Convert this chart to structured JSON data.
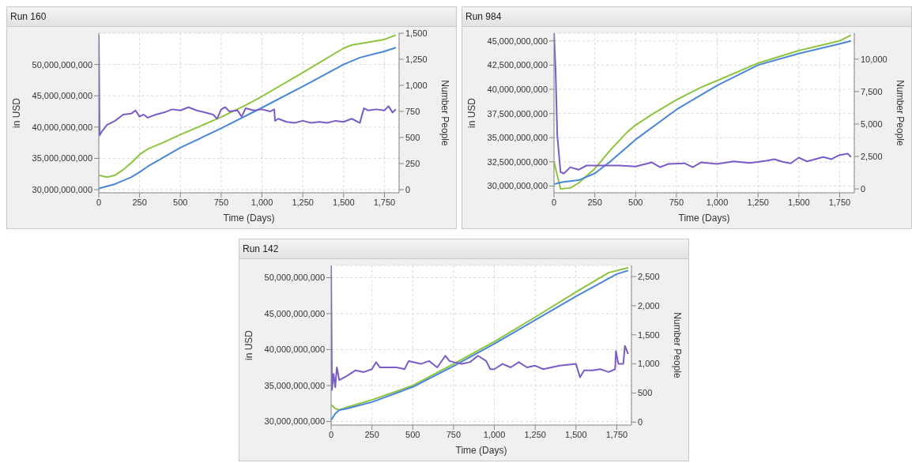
{
  "chart_data": [
    {
      "type": "line",
      "title": "Run 160",
      "xlabel": "Time (Days)",
      "ylabel": "in USD",
      "y2label": "Number People",
      "xlim": [
        0,
        1840
      ],
      "xticks": [
        0,
        250,
        500,
        750,
        {
          "value": 1000,
          "label": "1,000"
        },
        {
          "value": 1250,
          "label": "1,250"
        },
        {
          "value": 1500,
          "label": "1,500"
        },
        {
          "value": 1750,
          "label": "1,750"
        }
      ],
      "ylim": [
        29500000000,
        55000000000
      ],
      "yticks": [
        {
          "value": 30000000000,
          "label": "30,000,000,000"
        },
        {
          "value": 35000000000,
          "label": "35,000,000,000"
        },
        {
          "value": 40000000000,
          "label": "40,000,000,000"
        },
        {
          "value": 45000000000,
          "label": "45,000,000,000"
        },
        {
          "value": 50000000000,
          "label": "50,000,000,000"
        }
      ],
      "y2lim": [
        -30,
        1500
      ],
      "y2ticks": [
        0,
        250,
        500,
        750,
        {
          "value": 1000,
          "label": "1,000"
        },
        {
          "value": 1250,
          "label": "1,250"
        },
        {
          "value": 1500,
          "label": "1,500"
        }
      ],
      "grid": true,
      "legend": false,
      "marker": "none",
      "line_style": "solid",
      "series": [
        {
          "color": "#8cc43c",
          "x": [
            0,
            50,
            100,
            150,
            200,
            250,
            300,
            400,
            500,
            600,
            750,
            900,
            1000,
            1250,
            1500,
            1550,
            1750,
            1820
          ],
          "values": [
            32300000000,
            32000000000,
            32300000000,
            33200000000,
            34300000000,
            35600000000,
            36500000000,
            37600000000,
            38800000000,
            39900000000,
            41600000000,
            43500000000,
            44900000000,
            48700000000,
            52600000000,
            53100000000,
            54000000000,
            54700000000
          ]
        },
        {
          "color": "#4a86d8",
          "x": [
            0,
            100,
            200,
            250,
            300,
            500,
            750,
            1000,
            1250,
            1500,
            1600,
            1750,
            1820
          ],
          "values": [
            30200000000,
            30900000000,
            32000000000,
            32800000000,
            33700000000,
            36700000000,
            39800000000,
            43100000000,
            46500000000,
            50000000000,
            51100000000,
            52100000000,
            52700000000
          ]
        },
        {
          "color": "#7a5cc8",
          "axis": "y2",
          "x": [
            0,
            5,
            20,
            50,
            100,
            150,
            200,
            225,
            250,
            275,
            300,
            350,
            400,
            450,
            500,
            550,
            600,
            650,
            700,
            725,
            750,
            775,
            800,
            850,
            875,
            900,
            950,
            1000,
            1050,
            1075,
            1080,
            1100,
            1150,
            1200,
            1250,
            1300,
            1350,
            1400,
            1450,
            1500,
            1550,
            1600,
            1610,
            1625,
            1650,
            1700,
            1750,
            1775,
            1800,
            1820
          ],
          "values": [
            1480,
            520,
            560,
            620,
            660,
            720,
            730,
            760,
            700,
            720,
            690,
            720,
            740,
            770,
            760,
            790,
            760,
            740,
            720,
            680,
            770,
            790,
            750,
            760,
            700,
            780,
            760,
            770,
            750,
            770,
            660,
            680,
            650,
            640,
            660,
            640,
            650,
            640,
            660,
            650,
            680,
            640,
            700,
            780,
            760,
            770,
            760,
            800,
            740,
            770
          ]
        }
      ]
    },
    {
      "type": "line",
      "title": "Run 984",
      "xlabel": "Time (Days)",
      "ylabel": "in USD",
      "y2label": "Number People",
      "xlim": [
        0,
        1840
      ],
      "xticks": [
        0,
        250,
        500,
        750,
        {
          "value": 1000,
          "label": "1,000"
        },
        {
          "value": 1250,
          "label": "1,250"
        },
        {
          "value": 1500,
          "label": "1,500"
        },
        {
          "value": 1750,
          "label": "1,750"
        }
      ],
      "ylim": [
        29300000000,
        45800000000
      ],
      "yticks": [
        {
          "value": 30000000000,
          "label": "30,000,000,000"
        },
        {
          "value": 32500000000,
          "label": "32,500,000,000"
        },
        {
          "value": 35000000000,
          "label": "35,000,000,000"
        },
        {
          "value": 37500000000,
          "label": "37,500,000,000"
        },
        {
          "value": 40000000000,
          "label": "40,000,000,000"
        },
        {
          "value": 42500000000,
          "label": "42,500,000,000"
        },
        {
          "value": 45000000000,
          "label": "45,000,000,000"
        }
      ],
      "y2lim": [
        -300,
        12000
      ],
      "y2ticks": [
        0,
        {
          "value": 2500,
          "label": "2,500"
        },
        {
          "value": 5000,
          "label": "5,000"
        },
        {
          "value": 7500,
          "label": "7,500"
        },
        {
          "value": 10000,
          "label": "10,000"
        }
      ],
      "grid": true,
      "legend": false,
      "marker": "none",
      "line_style": "solid",
      "series": [
        {
          "color": "#8cc43c",
          "x": [
            0,
            40,
            100,
            150,
            250,
            350,
            450,
            500,
            600,
            750,
            900,
            1000,
            1250,
            1500,
            1750,
            1820
          ],
          "values": [
            32500000000,
            29700000000,
            29800000000,
            30300000000,
            31800000000,
            33800000000,
            35600000000,
            36300000000,
            37400000000,
            38900000000,
            40200000000,
            40900000000,
            42700000000,
            44000000000,
            45000000000,
            45600000000
          ]
        },
        {
          "color": "#4a86d8",
          "x": [
            0,
            50,
            150,
            250,
            350,
            500,
            750,
            1000,
            1250,
            1500,
            1750,
            1820
          ],
          "values": [
            30200000000,
            30400000000,
            30600000000,
            31300000000,
            32600000000,
            34800000000,
            37900000000,
            40400000000,
            42500000000,
            43700000000,
            44700000000,
            45000000000
          ]
        },
        {
          "color": "#7a5cc8",
          "axis": "y2",
          "x": [
            0,
            10,
            20,
            40,
            60,
            100,
            150,
            200,
            300,
            400,
            500,
            600,
            650,
            700,
            800,
            850,
            900,
            1000,
            1100,
            1200,
            1300,
            1350,
            1400,
            1450,
            1500,
            1550,
            1600,
            1650,
            1700,
            1750,
            1800,
            1820
          ],
          "values": [
            12000,
            9060,
            4140,
            1300,
            1180,
            1670,
            1480,
            1800,
            1800,
            1800,
            1720,
            2040,
            1670,
            1920,
            1970,
            1670,
            2040,
            1920,
            2120,
            2000,
            2170,
            2290,
            2090,
            1970,
            2410,
            2120,
            2290,
            2460,
            2290,
            2610,
            2710,
            2460
          ]
        }
      ]
    },
    {
      "type": "line",
      "title": "Run 142",
      "xlabel": "Time (Days)",
      "ylabel": "in USD",
      "y2label": "Number People",
      "xlim": [
        0,
        1840
      ],
      "xticks": [
        0,
        250,
        500,
        750,
        {
          "value": 1000,
          "label": "1,000"
        },
        {
          "value": 1250,
          "label": "1,250"
        },
        {
          "value": 1500,
          "label": "1,500"
        },
        {
          "value": 1750,
          "label": "1,750"
        }
      ],
      "ylim": [
        29500000000,
        51700000000
      ],
      "yticks": [
        {
          "value": 30000000000,
          "label": "30,000,000,000"
        },
        {
          "value": 35000000000,
          "label": "35,000,000,000"
        },
        {
          "value": 40000000000,
          "label": "40,000,000,000"
        },
        {
          "value": 45000000000,
          "label": "45,000,000,000"
        },
        {
          "value": 50000000000,
          "label": "50,000,000,000"
        }
      ],
      "y2lim": [
        -50,
        2690
      ],
      "y2ticks": [
        0,
        500,
        {
          "value": 1000,
          "label": "1,000"
        },
        {
          "value": 1500,
          "label": "1,500"
        },
        {
          "value": 2000,
          "label": "2,000"
        },
        {
          "value": 2500,
          "label": "2,500"
        }
      ],
      "grid": true,
      "legend": false,
      "marker": "none",
      "line_style": "solid",
      "series": [
        {
          "color": "#8cc43c",
          "x": [
            0,
            25,
            50,
            100,
            250,
            500,
            750,
            1000,
            1250,
            1500,
            1700,
            1820
          ],
          "values": [
            32300000000,
            31800000000,
            31600000000,
            32000000000,
            33000000000,
            35000000000,
            38000000000,
            41100000000,
            44500000000,
            48000000000,
            50700000000,
            51400000000
          ]
        },
        {
          "color": "#4a86d8",
          "x": [
            0,
            25,
            50,
            100,
            250,
            500,
            750,
            1000,
            1250,
            1500,
            1750,
            1820
          ],
          "values": [
            30200000000,
            31100000000,
            31600000000,
            31800000000,
            32700000000,
            34800000000,
            37700000000,
            40800000000,
            44100000000,
            47400000000,
            50500000000,
            51000000000
          ]
        },
        {
          "color": "#7a5cc8",
          "axis": "y2",
          "x": [
            0,
            5,
            15,
            25,
            35,
            50,
            100,
            150,
            200,
            250,
            275,
            300,
            400,
            450,
            475,
            550,
            600,
            650,
            700,
            725,
            750,
            800,
            850,
            900,
            950,
            975,
            1000,
            1050,
            1100,
            1150,
            1200,
            1250,
            1300,
            1400,
            1500,
            1525,
            1550,
            1600,
            1650,
            1700,
            1740,
            1745,
            1760,
            1790,
            1800,
            1820
          ],
          "values": [
            2680,
            550,
            830,
            600,
            940,
            720,
            800,
            890,
            860,
            910,
            1030,
            940,
            940,
            910,
            1050,
            1000,
            1050,
            940,
            1140,
            1050,
            1030,
            1000,
            1030,
            1140,
            1050,
            910,
            910,
            1000,
            940,
            1030,
            940,
            970,
            910,
            970,
            1000,
            770,
            890,
            890,
            910,
            860,
            910,
            1220,
            1000,
            1000,
            1310,
            1170
          ]
        }
      ]
    }
  ]
}
